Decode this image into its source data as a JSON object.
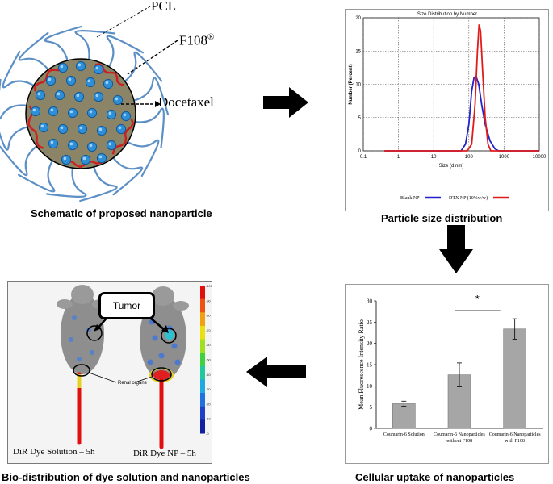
{
  "schematic": {
    "label_pcl": "PCL",
    "label_f108": "F108",
    "label_f108_sup": "®",
    "label_docetaxel": "Docetaxel",
    "caption": "Schematic of proposed nanoparticle",
    "colors": {
      "core": "#8c8466",
      "drug": "#2f8fd6",
      "chains": "#5b8fc6",
      "f108": "#cc1f1f"
    }
  },
  "size_panel": {
    "caption": "Particle size distribution",
    "chart_data": {
      "type": "line",
      "title": "Size Distribution by Number",
      "xlabel": "Size (d.nm)",
      "ylabel": "Number (Percent)",
      "xscale": "log",
      "xlim": [
        0.1,
        10000
      ],
      "ylim": [
        0,
        20
      ],
      "x_ticks": [
        "0.1",
        "1",
        "10",
        "100",
        "1000",
        "10000"
      ],
      "y_ticks": [
        "0",
        "5",
        "10",
        "15",
        "20"
      ],
      "grid": true,
      "legend": "bottom",
      "series": [
        {
          "name": "Blank NP",
          "color": "#2222cc",
          "points": [
            [
              0.4,
              0
            ],
            [
              60,
              0
            ],
            [
              80,
              1
            ],
            [
              100,
              4
            ],
            [
              120,
              9
            ],
            [
              140,
              11
            ],
            [
              160,
              11.2
            ],
            [
              190,
              10
            ],
            [
              230,
              7
            ],
            [
              290,
              4
            ],
            [
              400,
              1.5
            ],
            [
              550,
              0.3
            ],
            [
              700,
              0
            ],
            [
              10000,
              0
            ]
          ]
        },
        {
          "name": "DTX NP (10%w/w)",
          "color": "#e01b1b",
          "points": [
            [
              0.4,
              0
            ],
            [
              90,
              0
            ],
            [
              120,
              1
            ],
            [
              150,
              7
            ],
            [
              175,
              15
            ],
            [
              195,
              19
            ],
            [
              215,
              18
            ],
            [
              245,
              12
            ],
            [
              290,
              5
            ],
            [
              350,
              1
            ],
            [
              420,
              0
            ],
            [
              10000,
              0
            ]
          ]
        }
      ]
    }
  },
  "uptake_panel": {
    "caption": "Cellular uptake of nanoparticles",
    "significance": "*",
    "chart_data": {
      "type": "bar",
      "ylabel": "Mean Fluorescence Intensity Ratio",
      "ylim": [
        0,
        30
      ],
      "y_ticks": [
        "0",
        "5",
        "10",
        "15",
        "20",
        "25",
        "30"
      ],
      "categories": [
        [
          "Coumarin-6 Solution"
        ],
        [
          "Coumarin-6 Nanoparticles",
          "without F108"
        ],
        [
          "Coumarin-6 Nanoparticles",
          "with F108"
        ]
      ],
      "values": [
        5.8,
        12.6,
        23.4
      ],
      "errors": [
        0.6,
        2.8,
        2.4
      ],
      "bar_color": "#a6a6a6"
    }
  },
  "biodist_panel": {
    "caption": "Bio-distribution of dye solution and nanoparticles",
    "tumor_label": "Tumor",
    "renal_label": "Renal organs",
    "left_label": "DiR Dye Solution – 5h",
    "right_label": "DiR Dye NP – 5h",
    "colorbar_ticks": [
      "-101",
      "-90",
      "-80",
      "-70",
      "-60",
      "-50",
      "-40",
      "-30",
      "-20",
      "-10",
      "-0"
    ]
  }
}
